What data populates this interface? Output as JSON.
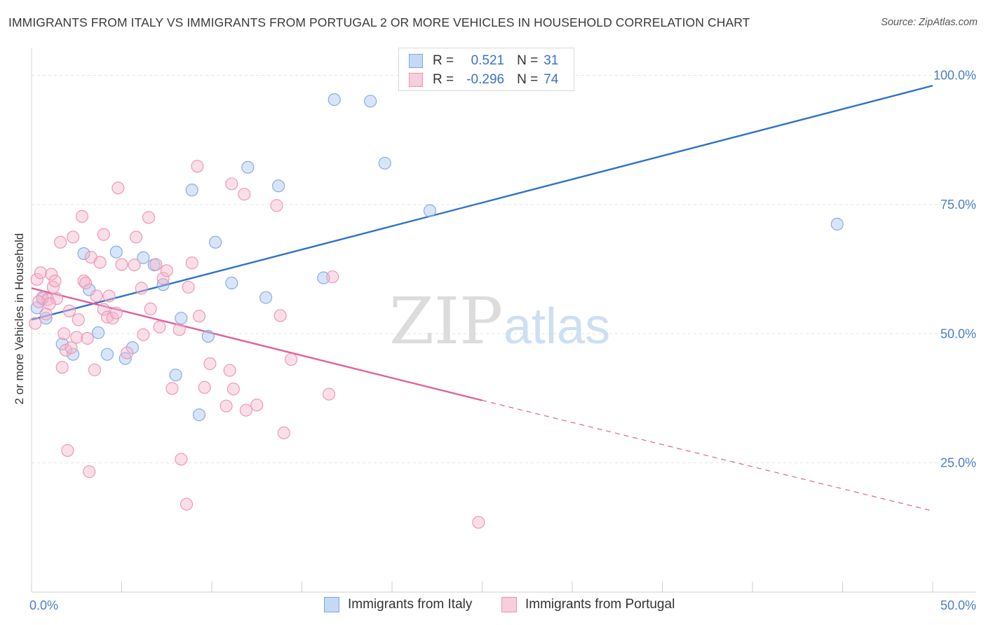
{
  "title": "IMMIGRANTS FROM ITALY VS IMMIGRANTS FROM PORTUGAL 2 OR MORE VEHICLES IN HOUSEHOLD CORRELATION CHART",
  "source": "Source: ZipAtlas.com",
  "colors": {
    "italy": "#a8c6ef",
    "italy_line": "#2f72c8",
    "portugal": "#f5b6cb",
    "portugal_line": "#e0609a",
    "axis_text": "#4a7fc9"
  },
  "legend": {
    "italy": {
      "r_label": "R =",
      "r_value": "0.521",
      "n_label": "N =",
      "n_value": "31"
    },
    "portugal": {
      "r_label": "R =",
      "r_value": "-0.296",
      "n_label": "N =",
      "n_value": "74"
    }
  },
  "bottom_legend": {
    "italy": "Immigrants from Italy",
    "portugal": "Immigrants from Portugal"
  },
  "chart_data": {
    "type": "scatter",
    "ylabel": "2 or more Vehicles in Household",
    "xlim": [
      0,
      50
    ],
    "ylim": [
      0,
      104
    ],
    "x_tick_labels": [
      {
        "x": 0,
        "label": "0.0%"
      },
      {
        "x": 50,
        "label": "50.0%"
      }
    ],
    "y_tick_labels": [
      {
        "y": 25,
        "label": "25.0%"
      },
      {
        "y": 50,
        "label": "50.0%"
      },
      {
        "y": 75,
        "label": "75.0%"
      },
      {
        "y": 100,
        "label": "100.0%"
      }
    ],
    "grid": true,
    "series": [
      {
        "name": "Immigrants from Italy",
        "key": "italy",
        "points": [
          [
            0.3,
            55
          ],
          [
            0.8,
            53
          ],
          [
            1.7,
            48
          ],
          [
            2.3,
            46
          ],
          [
            2.9,
            65.5
          ],
          [
            3.2,
            58.5
          ],
          [
            3.7,
            50.2
          ],
          [
            4.2,
            46
          ],
          [
            4.7,
            65.8
          ],
          [
            5.2,
            45.2
          ],
          [
            5.6,
            47.3
          ],
          [
            6.2,
            64.7
          ],
          [
            6.8,
            63.3
          ],
          [
            7.3,
            59.5
          ],
          [
            8.0,
            42
          ],
          [
            8.3,
            53
          ],
          [
            8.9,
            77.8
          ],
          [
            9.3,
            34.3
          ],
          [
            9.8,
            49.5
          ],
          [
            10.2,
            67.7
          ],
          [
            11.1,
            59.8
          ],
          [
            12.0,
            82.2
          ],
          [
            13.0,
            57
          ],
          [
            13.7,
            78.6
          ],
          [
            16.2,
            60.8
          ],
          [
            16.8,
            95.3
          ],
          [
            18.8,
            95
          ],
          [
            19.6,
            83
          ],
          [
            22.1,
            73.8
          ],
          [
            44.7,
            71.2
          ],
          [
            0.6,
            56.8
          ]
        ],
        "trend": {
          "x": [
            0,
            50
          ],
          "y": [
            52.7,
            98
          ]
        }
      },
      {
        "name": "Immigrants from Portugal",
        "key": "portugal",
        "points": [
          [
            0.2,
            52
          ],
          [
            0.3,
            60.5
          ],
          [
            0.5,
            61.8
          ],
          [
            0.6,
            57
          ],
          [
            0.8,
            53.8
          ],
          [
            0.9,
            56.6
          ],
          [
            1.1,
            61.5
          ],
          [
            1.2,
            59
          ],
          [
            1.3,
            60.2
          ],
          [
            1.4,
            56.8
          ],
          [
            1.6,
            67.7
          ],
          [
            1.7,
            43.5
          ],
          [
            1.8,
            50
          ],
          [
            1.9,
            46.8
          ],
          [
            2.0,
            27.4
          ],
          [
            2.2,
            47.3
          ],
          [
            2.3,
            68.7
          ],
          [
            2.5,
            49.3
          ],
          [
            2.6,
            52.7
          ],
          [
            2.8,
            72.7
          ],
          [
            2.9,
            60.2
          ],
          [
            3.0,
            59.8
          ],
          [
            3.1,
            49.1
          ],
          [
            3.2,
            23.3
          ],
          [
            3.3,
            64.8
          ],
          [
            3.5,
            43
          ],
          [
            3.6,
            57.3
          ],
          [
            3.8,
            63.8
          ],
          [
            4.0,
            54.7
          ],
          [
            4.0,
            69.2
          ],
          [
            4.2,
            53.2
          ],
          [
            4.3,
            57.3
          ],
          [
            4.5,
            53
          ],
          [
            4.7,
            54
          ],
          [
            4.8,
            78.2
          ],
          [
            5.0,
            63.4
          ],
          [
            5.3,
            46.3
          ],
          [
            5.7,
            63.3
          ],
          [
            5.8,
            68.7
          ],
          [
            6.1,
            58.8
          ],
          [
            6.2,
            49.8
          ],
          [
            6.5,
            72.5
          ],
          [
            6.6,
            54.8
          ],
          [
            6.9,
            63.4
          ],
          [
            7.1,
            51.3
          ],
          [
            7.3,
            60.7
          ],
          [
            7.5,
            62.2
          ],
          [
            7.8,
            39.4
          ],
          [
            8.2,
            50.8
          ],
          [
            8.3,
            25.7
          ],
          [
            8.6,
            17
          ],
          [
            8.7,
            59
          ],
          [
            8.9,
            63.7
          ],
          [
            9.2,
            82.4
          ],
          [
            9.3,
            53.4
          ],
          [
            9.6,
            39.6
          ],
          [
            9.9,
            44.2
          ],
          [
            10.8,
            36
          ],
          [
            11.0,
            42.9
          ],
          [
            11.1,
            79
          ],
          [
            11.2,
            39.3
          ],
          [
            11.8,
            77
          ],
          [
            11.9,
            35.2
          ],
          [
            12.5,
            36.2
          ],
          [
            13.6,
            74.8
          ],
          [
            13.8,
            53.5
          ],
          [
            14.0,
            30.8
          ],
          [
            14.4,
            45
          ],
          [
            16.7,
            61
          ],
          [
            16.5,
            38.3
          ],
          [
            24.8,
            13.5
          ],
          [
            0.4,
            56.2
          ],
          [
            1.0,
            55.8
          ],
          [
            2.1,
            54.4
          ]
        ],
        "trend": {
          "x": [
            0,
            25
          ],
          "y": [
            58.8,
            37.1
          ],
          "dashed_extension": {
            "x": [
              25,
              50
            ],
            "y": [
              37.1,
              15.7
            ]
          }
        }
      }
    ]
  },
  "watermark": {
    "zip": "ZIP",
    "atlas": "atlas"
  }
}
